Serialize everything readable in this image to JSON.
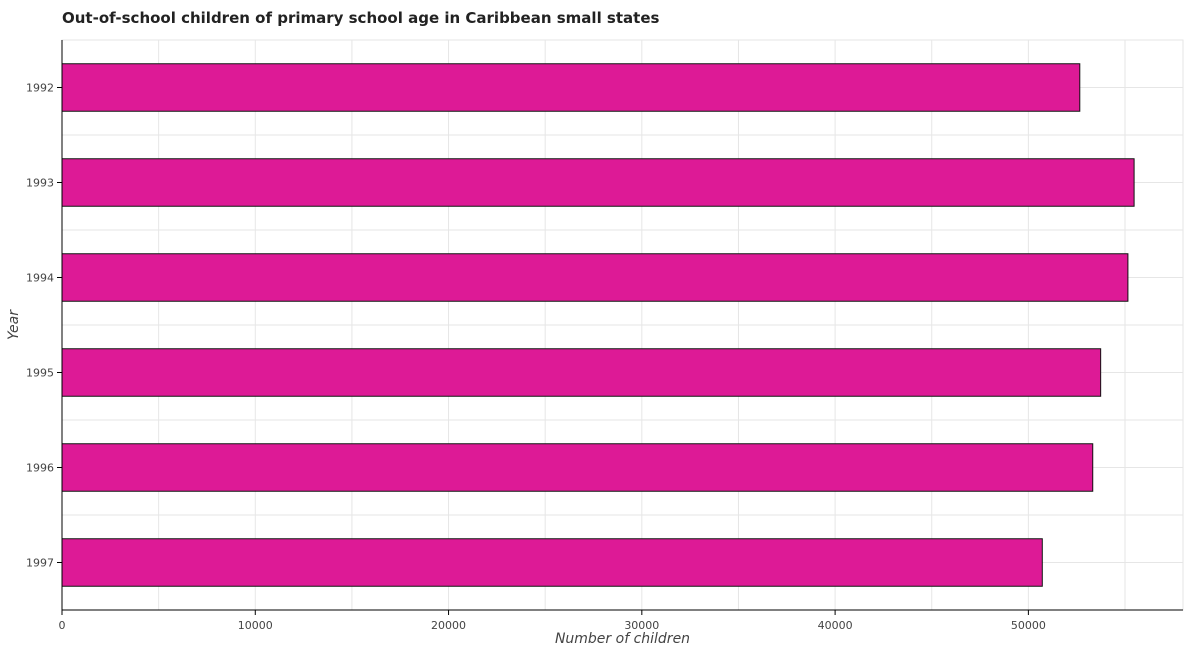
{
  "chart_data": {
    "type": "bar",
    "orientation": "horizontal",
    "title": "Out-of-school children of primary school age in Caribbean small states",
    "xlabel": "Number of children",
    "ylabel": "Year",
    "categories": [
      "1992",
      "1993",
      "1994",
      "1995",
      "1996",
      "1997"
    ],
    "values": [
      52660,
      55470,
      55150,
      53740,
      53330,
      50720
    ],
    "xlim": [
      0,
      58000
    ],
    "xticks": [
      "0",
      "10000",
      "20000",
      "30000",
      "40000",
      "50000"
    ],
    "grid": true,
    "bar_color": "#dd1a96",
    "bar_edge_color": "#111111"
  }
}
